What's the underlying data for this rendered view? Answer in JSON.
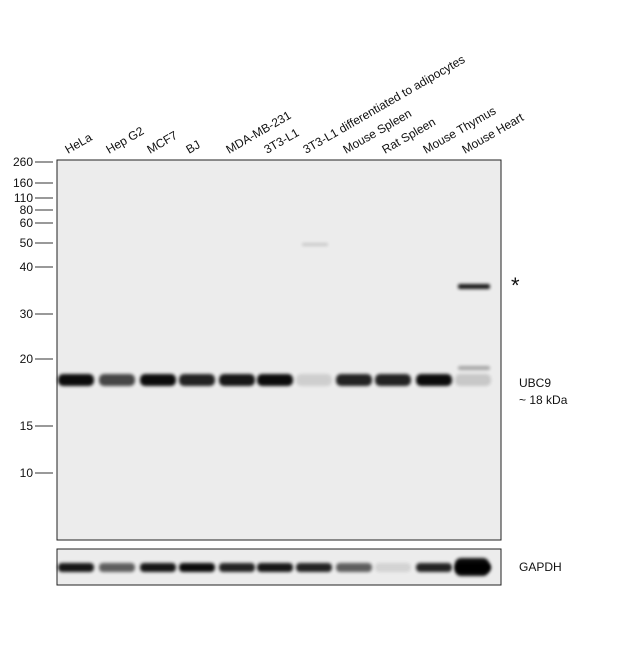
{
  "lanes": [
    "HeLa",
    "Hep G2",
    "MCF7",
    "BJ",
    "MDA-MB-231",
    "3T3-L1",
    "3T3-L1 differentiated to adipocytes",
    "Mouse Spleen",
    "Rat Spleen",
    "Mouse Thymus",
    "Mouse Heart"
  ],
  "markers": [
    260,
    160,
    110,
    80,
    60,
    50,
    40,
    30,
    20,
    15,
    10
  ],
  "annotations": {
    "asterisk": "*",
    "target": "UBC9",
    "size": "~ 18 kDa",
    "loading_control": "GAPDH"
  }
}
